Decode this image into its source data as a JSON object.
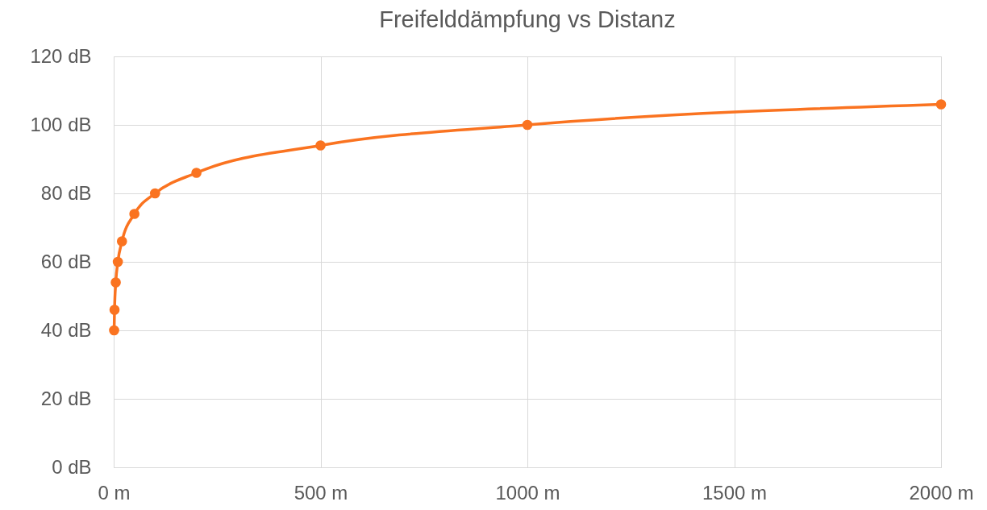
{
  "chart_data": {
    "type": "line",
    "title": "Freifelddämpfung vs Distanz",
    "x": [
      1,
      2,
      5,
      10,
      20,
      50,
      100,
      200,
      500,
      1000,
      2000
    ],
    "series": [
      {
        "color": "#fa7320",
        "values": [
          40,
          46,
          54,
          60,
          66,
          74,
          80,
          86,
          94,
          100,
          106
        ]
      }
    ],
    "xlim": [
      0,
      2000
    ],
    "xticks": [
      {
        "value": 0,
        "label": "0 m"
      },
      {
        "value": 500,
        "label": "500 m"
      },
      {
        "value": 1000,
        "label": "1000 m"
      },
      {
        "value": 1500,
        "label": "1500 m"
      },
      {
        "value": 2000,
        "label": "2000 m"
      }
    ],
    "ylim": [
      0,
      120
    ],
    "yticks": [
      {
        "value": 0,
        "label": "0 dB"
      },
      {
        "value": 20,
        "label": "20 dB"
      },
      {
        "value": 40,
        "label": "40 dB"
      },
      {
        "value": 60,
        "label": "60 dB"
      },
      {
        "value": 80,
        "label": "80 dB"
      },
      {
        "value": 100,
        "label": "100 dB"
      },
      {
        "value": 120,
        "label": "120 dB"
      }
    ],
    "grid": true,
    "marker": "circle",
    "line_style": "solid"
  }
}
